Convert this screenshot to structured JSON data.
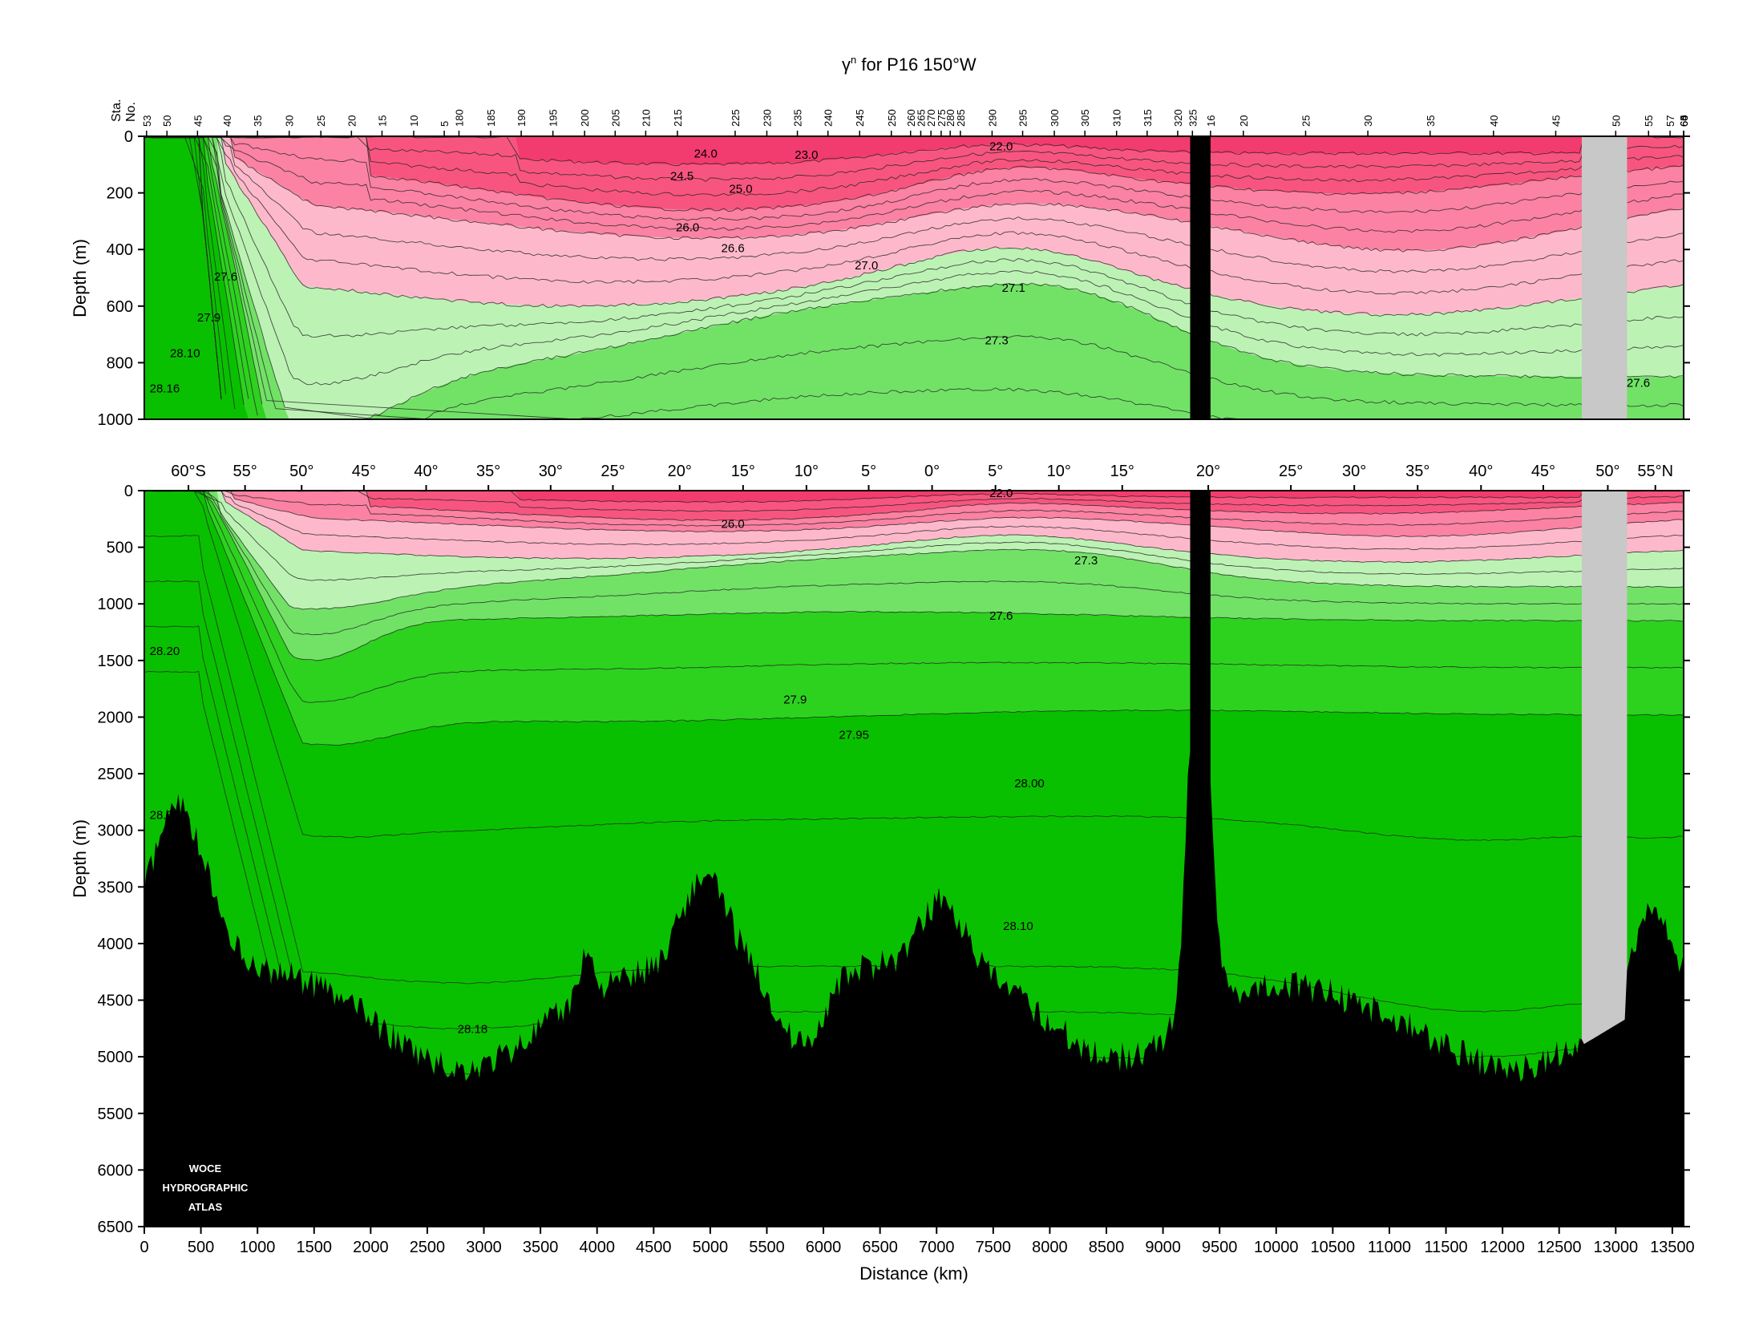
{
  "title_main": "γ",
  "title_sup": "n",
  "title_rest": " for P16 150°W",
  "station_axis_label_1": "Sta.",
  "station_axis_label_2": "No.",
  "ylabel": "Depth (m)",
  "xlabel": "Distance (km)",
  "logo": [
    "WOCE",
    "HYDROGRAPHIC",
    "ATLAS"
  ],
  "colors": {
    "bottom": "#000000",
    "no_data": "#c8c8c8",
    "band_upper_red": "#f23b6e",
    "band_red": "#f7557f",
    "band_pink": "#fb82a2",
    "band_light_pink": "#fdb9cb",
    "band_pale_green": "#bdf2b5",
    "band_light_green": "#72e267",
    "band_green": "#2dd21f",
    "band_dark_green": "#09c000"
  },
  "station_ticks": [
    "53",
    "50",
    "45",
    "40",
    "35",
    "30",
    "25",
    "20",
    "15",
    "10",
    "5",
    "180",
    "185",
    "190",
    "195",
    "200",
    "205",
    "210",
    "215",
    "225",
    "230",
    "235",
    "240",
    "245",
    "250",
    "260",
    "265",
    "270",
    "275",
    "280",
    "285",
    "290",
    "295",
    "300",
    "305",
    "310",
    "315",
    "320",
    "325",
    "16",
    "20",
    "25",
    "30",
    "35",
    "40",
    "45",
    "50",
    "55",
    "57",
    "66",
    "65",
    "60",
    "64"
  ],
  "latitude_ticks": [
    "60°S",
    "55°",
    "50°",
    "45°",
    "40°",
    "35°",
    "30°",
    "25°",
    "20°",
    "15°",
    "10°",
    "5°",
    "0°",
    "5°",
    "10°",
    "15°",
    "20°",
    "25°",
    "30°",
    "35°",
    "40°",
    "45°",
    "50°",
    "55°N"
  ],
  "chart_data": [
    {
      "type": "heatmap",
      "panel": "upper (0–1000 m)",
      "xlabel": "",
      "ylabel": "Depth (m)",
      "xlim": [
        0,
        13600
      ],
      "ylim": [
        1000,
        0
      ],
      "y_ticks": [
        0,
        200,
        400,
        600,
        800,
        1000
      ],
      "y_tick_labels": [
        "0",
        "200",
        "400",
        "600",
        "800",
        "1000"
      ],
      "contour_labels": [
        {
          "text": "24.0",
          "x": 4960,
          "depth": 75
        },
        {
          "text": "23.0",
          "x": 5850,
          "depth": 80
        },
        {
          "text": "22.0",
          "x": 7570,
          "depth": 50
        },
        {
          "text": "24.5",
          "x": 4750,
          "depth": 155
        },
        {
          "text": "25.0",
          "x": 5270,
          "depth": 200
        },
        {
          "text": "26.0",
          "x": 4800,
          "depth": 335
        },
        {
          "text": "26.6",
          "x": 5200,
          "depth": 410
        },
        {
          "text": "27.0",
          "x": 6380,
          "depth": 470
        },
        {
          "text": "27.1",
          "x": 7680,
          "depth": 550
        },
        {
          "text": "27.3",
          "x": 7530,
          "depth": 735
        },
        {
          "text": "27.6",
          "x": 720,
          "depth": 510
        },
        {
          "text": "27.9",
          "x": 570,
          "depth": 655
        },
        {
          "text": "28.10",
          "x": 360,
          "depth": 780
        },
        {
          "text": "28.16",
          "x": 180,
          "depth": 905
        },
        {
          "text": "27.6",
          "x": 13200,
          "depth": 885
        }
      ]
    },
    {
      "type": "heatmap",
      "panel": "lower (0–6500 m)",
      "xlabel": "Distance (km)",
      "ylabel": "Depth (m)",
      "xlim": [
        0,
        13600
      ],
      "ylim": [
        6500,
        0
      ],
      "x_ticks": [
        0,
        500,
        1000,
        1500,
        2000,
        2500,
        3000,
        3500,
        4000,
        4500,
        5000,
        5500,
        6000,
        6500,
        7000,
        7500,
        8000,
        8500,
        9000,
        9500,
        10000,
        10500,
        11000,
        11500,
        12000,
        12500,
        13000,
        13500
      ],
      "x_tick_labels": [
        "0",
        "500",
        "1000",
        "1500",
        "2000",
        "2500",
        "3000",
        "3500",
        "4000",
        "4500",
        "5000",
        "5500",
        "6000",
        "6500",
        "7000",
        "7500",
        "8000",
        "8500",
        "9000",
        "9500",
        "10000",
        "10500",
        "11000",
        "11500",
        "12000",
        "12500",
        "13000",
        "13500"
      ],
      "y_ticks": [
        0,
        500,
        1000,
        1500,
        2000,
        2500,
        3000,
        3500,
        4000,
        4500,
        5000,
        5500,
        6000,
        6500
      ],
      "y_tick_labels": [
        "0",
        "500",
        "1000",
        "1500",
        "2000",
        "2500",
        "3000",
        "3500",
        "4000",
        "4500",
        "5000",
        "5500",
        "6000",
        "6500"
      ],
      "contour_labels": [
        {
          "text": "22.0",
          "x": 7570,
          "depth": 55
        },
        {
          "text": "26.0",
          "x": 5200,
          "depth": 330
        },
        {
          "text": "27.3",
          "x": 8320,
          "depth": 650
        },
        {
          "text": "27.6",
          "x": 7570,
          "depth": 1140
        },
        {
          "text": "28.20",
          "x": 180,
          "depth": 1450
        },
        {
          "text": "27.9",
          "x": 5750,
          "depth": 1880
        },
        {
          "text": "27.95",
          "x": 6270,
          "depth": 2190
        },
        {
          "text": "28.00",
          "x": 7820,
          "depth": 2620
        },
        {
          "text": "28.30",
          "x": 180,
          "depth": 2900
        },
        {
          "text": "28.10",
          "x": 7720,
          "depth": 3880
        },
        {
          "text": "28.18",
          "x": 2900,
          "depth": 4790
        }
      ]
    }
  ]
}
